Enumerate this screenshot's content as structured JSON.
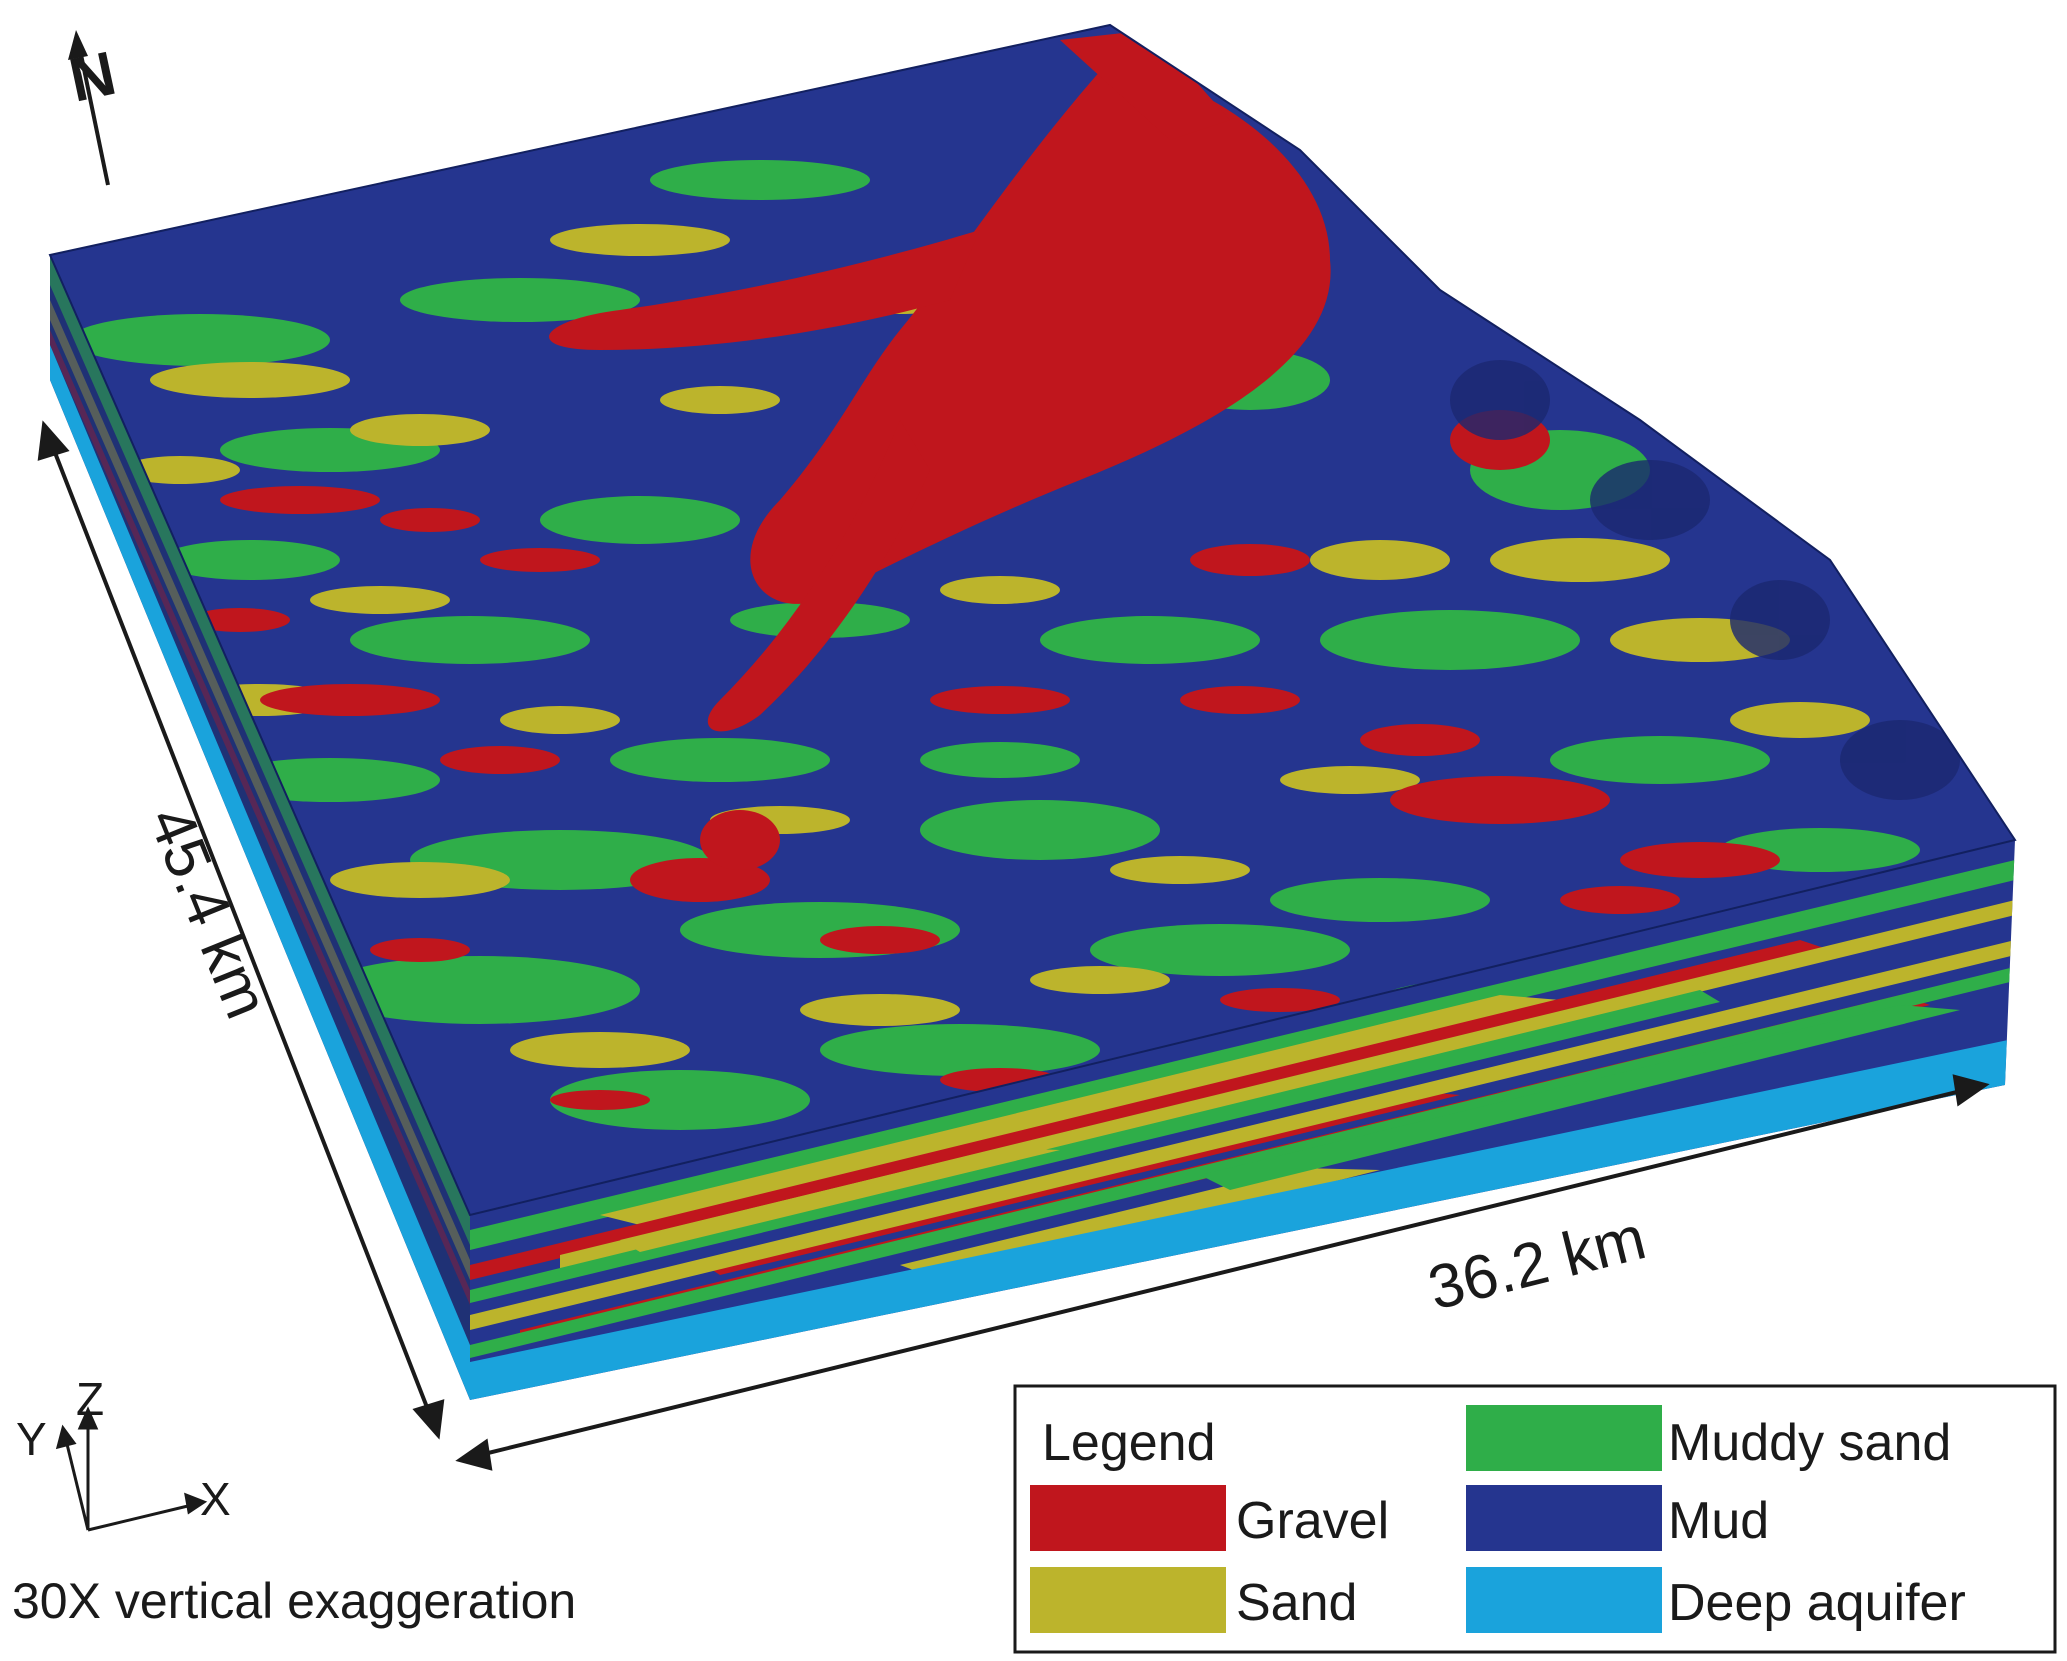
{
  "annotations": {
    "north_label": "N",
    "width_label": "36.2 km",
    "length_label": "45.4 km",
    "axis_x": "X",
    "axis_y": "Y",
    "axis_z": "Z",
    "caption": "30X vertical exaggeration"
  },
  "legend": {
    "title": "Legend",
    "items": [
      {
        "label": "Gravel",
        "color": "#c0161d"
      },
      {
        "label": "Sand",
        "color": "#bcb42c"
      },
      {
        "label": "Muddy sand",
        "color": "#2fae49"
      },
      {
        "label": "Mud",
        "color": "#25358f"
      },
      {
        "label": "Deep aquifer",
        "color": "#1aa3dc"
      }
    ]
  },
  "colors": {
    "gravel": "#c0161d",
    "sand": "#bcb42c",
    "muddy_sand": "#2fae49",
    "mud": "#25358f",
    "deep_aquifer": "#1aa3dc"
  }
}
